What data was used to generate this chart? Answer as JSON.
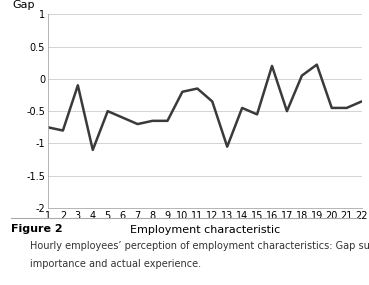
{
  "x": [
    1,
    2,
    3,
    4,
    5,
    6,
    7,
    8,
    9,
    10,
    11,
    12,
    13,
    14,
    15,
    16,
    17,
    18,
    19,
    20,
    21,
    22
  ],
  "y": [
    -0.75,
    -0.8,
    -0.1,
    -1.1,
    -0.5,
    -0.6,
    -0.7,
    -0.65,
    -0.65,
    -0.2,
    -0.15,
    -0.35,
    -1.05,
    -0.45,
    -0.55,
    0.2,
    -0.5,
    0.05,
    0.22,
    -0.45,
    -0.45,
    -0.35
  ],
  "xlabel": "Employment characteristic",
  "ylabel": "Gap",
  "ylim": [
    -2,
    1
  ],
  "xlim": [
    1,
    22
  ],
  "yticks": [
    -2,
    -1.5,
    -1,
    -0.5,
    0,
    0.5,
    1
  ],
  "xticks": [
    1,
    2,
    3,
    4,
    5,
    6,
    7,
    8,
    9,
    10,
    11,
    12,
    13,
    14,
    15,
    16,
    17,
    18,
    19,
    20,
    21,
    22
  ],
  "line_color": "#3a3a3a",
  "line_width": 1.8,
  "grid_color": "#cccccc",
  "bg_color": "#ffffff",
  "figure_label": "Figure 2",
  "caption_line1": "Hourly employees’ perception of employment characteristics: Gap summary between level of",
  "caption_line2": "importance and actual experience.",
  "label_fontsize": 8,
  "tick_fontsize": 7,
  "caption_fontsize": 7,
  "figure_label_fontsize": 8
}
